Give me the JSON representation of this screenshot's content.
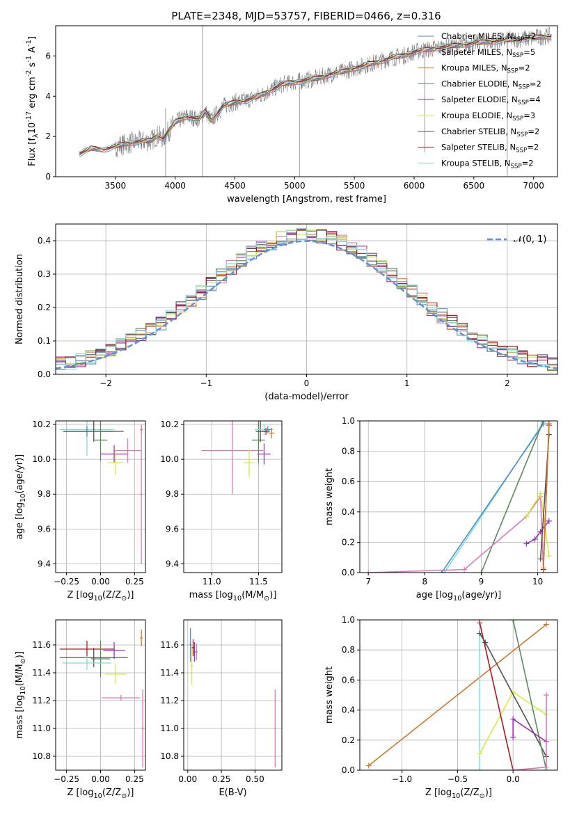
{
  "figure": {
    "title": "PLATE=2348, MJD=53757, FIBERID=0466, z=0.316"
  },
  "models": [
    {
      "key": "cm",
      "label": "Chabrier MILES, N$_{SSP}$=2",
      "label_main": "Chabrier MILES, N",
      "label_sub": "SSP",
      "label_tail": "=2",
      "color": "#4a90c8"
    },
    {
      "key": "sm",
      "label": "Salpeter MILES, N$_{SSP}$=5",
      "label_main": "Salpeter MILES, N",
      "label_sub": "SSP",
      "label_tail": "=5",
      "color": "#e078b8"
    },
    {
      "key": "km",
      "label": "Kroupa MILES, N$_{SSP}$=2",
      "label_main": "Kroupa MILES, N",
      "label_sub": "SSP",
      "label_tail": "=2",
      "color": "#d0782a"
    },
    {
      "key": "ce",
      "label": "Chabrier ELODIE, N$_{SSP}$=2",
      "label_main": "Chabrier ELODIE, N",
      "label_sub": "SSP",
      "label_tail": "=2",
      "color": "#5a8a5a"
    },
    {
      "key": "se",
      "label": "Salpeter ELODIE, N$_{SSP}$=4",
      "label_main": "Salpeter ELODIE, N",
      "label_sub": "SSP",
      "label_tail": "=4",
      "color": "#9a30b0"
    },
    {
      "key": "ke",
      "label": "Kroupa ELODIE, N$_{SSP}$=3",
      "label_main": "Kroupa ELODIE, N",
      "label_sub": "SSP",
      "label_tail": "=3",
      "color": "#d8e848"
    },
    {
      "key": "cs",
      "label": "Chabrier STELIB, N$_{SSP}$=2",
      "label_main": "Chabrier STELIB, N",
      "label_sub": "SSP",
      "label_tail": "=2",
      "color": "#505050"
    },
    {
      "key": "ss",
      "label": "Salpeter STELIB, N$_{SSP}$=2",
      "label_main": "Salpeter STELIB, N",
      "label_sub": "SSP",
      "label_tail": "=2",
      "color": "#b01818"
    },
    {
      "key": "ks",
      "label": "Kroupa STELIB, N$_{SSP}$=2",
      "label_main": "Kroupa STELIB, N",
      "label_sub": "SSP",
      "label_tail": "=2",
      "color": "#78e0e0"
    }
  ],
  "chart_data": [
    {
      "id": "spectrum",
      "type": "line",
      "title": "PLATE=2348, MJD=53757, FIBERID=0466, z=0.316",
      "xlabel": "wavelength [Angstrom, rest frame]",
      "ylabel": "Flux [f$_\\lambda$10$^{-17}$ erg cm$^{-2}$ s$^{-1}$ A$^{-1}$]",
      "xlim": [
        3000,
        7200
      ],
      "ylim": [
        0,
        7.5
      ],
      "xticks": [
        3500,
        4000,
        4500,
        5000,
        5500,
        6000,
        6500,
        7000
      ],
      "yticks": [
        0,
        2,
        4,
        6
      ],
      "grid": false,
      "legend": "top-right",
      "data_color": "#808080",
      "spectrum_x": [
        3200,
        3300,
        3400,
        3500,
        3600,
        3700,
        3800,
        3850,
        3900,
        3950,
        4000,
        4100,
        4200,
        4250,
        4300,
        4400,
        4500,
        4600,
        4700,
        4800,
        4900,
        5000,
        5100,
        5200,
        5300,
        5400,
        5500,
        5600,
        5700,
        5800,
        5900,
        6000,
        6200,
        6400,
        6600,
        6800,
        7000,
        7150
      ],
      "model_y": [
        1.15,
        1.4,
        1.35,
        1.5,
        1.65,
        1.75,
        1.8,
        2.05,
        1.9,
        2.3,
        2.7,
        3.0,
        2.85,
        3.25,
        2.8,
        3.5,
        3.7,
        3.8,
        4.0,
        4.3,
        4.6,
        4.7,
        4.8,
        4.9,
        5.1,
        5.2,
        5.4,
        5.55,
        5.7,
        5.9,
        6.0,
        6.2,
        6.4,
        6.55,
        6.7,
        6.8,
        6.9,
        7.0
      ],
      "spikes": [
        {
          "x": 4230,
          "ymin": 0,
          "ymax": 7.5
        },
        {
          "x": 3920,
          "ymin": 0,
          "ymax": 3.4
        },
        {
          "x": 5040,
          "ymin": 0,
          "ymax": 5.0
        },
        {
          "x": 6780,
          "ymin": 0,
          "ymax": 7.0
        },
        {
          "x": 6090,
          "ymin": 1.2,
          "ymax": 6.6
        }
      ]
    },
    {
      "id": "residuals",
      "type": "line",
      "xlabel": "(data-model)/error",
      "ylabel": "Normed distribution",
      "xlim": [
        -2.5,
        2.5
      ],
      "ylim": [
        0,
        0.45
      ],
      "xticks": [
        -2,
        -1,
        0,
        1,
        2
      ],
      "yticks": [
        0.0,
        0.1,
        0.2,
        0.3,
        0.4
      ],
      "grid": true,
      "legend": "top-right",
      "reference": {
        "name": "$\\mathcal{N}(0,1)$",
        "display": "𝒩(0, 1)",
        "color": "#6090d8",
        "mean": 0,
        "sd": 1
      }
    },
    {
      "id": "age-z",
      "type": "scatter",
      "xlabel": "Z [log$_{10}$(Z/Z$_\\odot$)]",
      "ylabel": "age  [log$_{10}$(age/yr)]",
      "xlim": [
        -0.33,
        0.33
      ],
      "ylim": [
        9.35,
        10.22
      ],
      "xticks": [
        -0.25,
        0.0,
        0.25
      ],
      "yticks": [
        9.4,
        9.6,
        9.8,
        10.0,
        10.2
      ],
      "grid": true,
      "points": [
        {
          "model": "ks",
          "x": -0.1,
          "y": 10.17,
          "xerr": 0.2,
          "yerr": 0.15
        },
        {
          "model": "cm",
          "x": -0.1,
          "y": 10.16,
          "xerr": 0.18,
          "yerr": 0.03
        },
        {
          "model": "cs",
          "x": -0.05,
          "y": 10.16,
          "xerr": 0.22,
          "yerr": 0.06
        },
        {
          "model": "ce",
          "x": 0.0,
          "y": 10.11,
          "xerr": 0.05,
          "yerr": 0.12
        },
        {
          "model": "se",
          "x": 0.1,
          "y": 10.03,
          "xerr": 0.1,
          "yerr": 0.05
        },
        {
          "model": "ke",
          "x": 0.11,
          "y": 9.98,
          "xerr": 0.06,
          "yerr": 0.07
        },
        {
          "model": "sm",
          "x": 0.2,
          "y": 10.05,
          "xerr": 0.1,
          "yerr": 0.07
        },
        {
          "model": "km",
          "x": 0.3,
          "y": 10.17,
          "xerr": 0.01,
          "yerr": 0.02
        },
        {
          "model": "sm",
          "x": 0.3,
          "y": 9.8,
          "xerr": 0.01,
          "yerr": 0.4
        }
      ]
    },
    {
      "id": "age-mass",
      "type": "scatter",
      "xlabel": "mass [log$_{10}$(M/M$_\\odot$)]",
      "ylabel": "",
      "xlim": [
        10.7,
        11.75
      ],
      "ylim": [
        9.35,
        10.22
      ],
      "xticks": [
        11.0,
        11.5
      ],
      "yticks": [
        9.4,
        9.6,
        9.8,
        10.0,
        10.2
      ],
      "grid": true,
      "points": [
        {
          "model": "sm",
          "x": 11.22,
          "y": 10.05,
          "xerr": 0.33,
          "yerr": 0.25
        },
        {
          "model": "ke",
          "x": 11.4,
          "y": 9.98,
          "xerr": 0.06,
          "yerr": 0.08
        },
        {
          "model": "ce",
          "x": 11.5,
          "y": 10.11,
          "xerr": 0.07,
          "yerr": 0.13
        },
        {
          "model": "se",
          "x": 11.56,
          "y": 10.03,
          "xerr": 0.07,
          "yerr": 0.06
        },
        {
          "model": "cs",
          "x": 11.52,
          "y": 10.16,
          "xerr": 0.05,
          "yerr": 0.06
        },
        {
          "model": "ks",
          "x": 11.56,
          "y": 10.17,
          "xerr": 0.1,
          "yerr": 0.03
        },
        {
          "model": "ss",
          "x": 11.58,
          "y": 10.16,
          "xerr": 0.04,
          "yerr": 0.02
        },
        {
          "model": "km",
          "x": 11.64,
          "y": 10.15,
          "xerr": 0.03,
          "yerr": 0.03
        },
        {
          "model": "cm",
          "x": 11.6,
          "y": 10.17,
          "xerr": 0.04,
          "yerr": 0.02
        }
      ]
    },
    {
      "id": "weight-age",
      "type": "line",
      "xlabel": "age  [log$_{10}$(age/yr)]",
      "ylabel": "mass weight",
      "xlim": [
        6.85,
        10.35
      ],
      "ylim": [
        0,
        1.0
      ],
      "xticks": [
        7,
        8,
        9,
        10
      ],
      "yticks": [
        0.0,
        0.2,
        0.4,
        0.6,
        0.8,
        1.0
      ],
      "grid": true,
      "series": [
        {
          "model": "ks",
          "x": [
            8.35,
            10.1
          ],
          "y": [
            0.0,
            0.99
          ]
        },
        {
          "model": "cm",
          "x": [
            8.3,
            10.1
          ],
          "y": [
            0.0,
            0.98
          ]
        },
        {
          "model": "ce",
          "x": [
            9.0,
            10.1
          ],
          "y": [
            0.0,
            1.0
          ]
        },
        {
          "model": "sm",
          "x": [
            7.0,
            8.7,
            9.8,
            10.05,
            10.1
          ],
          "y": [
            0.0,
            0.02,
            0.37,
            0.5,
            0.03
          ]
        },
        {
          "model": "ke",
          "x": [
            9.8,
            10.05,
            10.2
          ],
          "y": [
            0.37,
            0.52,
            0.11
          ]
        },
        {
          "model": "se",
          "x": [
            9.8,
            9.95,
            10.05,
            10.2
          ],
          "y": [
            0.19,
            0.22,
            0.27,
            0.34
          ]
        },
        {
          "model": "cs",
          "x": [
            10.05,
            10.2
          ],
          "y": [
            0.09,
            0.91
          ]
        },
        {
          "model": "ss",
          "x": [
            10.1,
            10.2
          ],
          "y": [
            0.02,
            0.98
          ]
        },
        {
          "model": "km",
          "x": [
            10.1,
            10.2
          ],
          "y": [
            0.03,
            0.97
          ]
        }
      ]
    },
    {
      "id": "mass-z",
      "type": "scatter",
      "xlabel": "Z [log$_{10}$(Z/Z$_\\odot$)]",
      "ylabel": "mass [log$_{10}$(M/M$_\\odot$)]",
      "xlim": [
        -0.33,
        0.33
      ],
      "ylim": [
        10.7,
        11.78
      ],
      "xticks": [
        -0.25,
        0.0,
        0.25
      ],
      "yticks": [
        10.8,
        11.0,
        11.2,
        11.4,
        11.6
      ],
      "grid": true,
      "points": [
        {
          "model": "ss",
          "x": -0.1,
          "y": 11.57,
          "xerr": 0.2,
          "yerr": 0.06
        },
        {
          "model": "se",
          "x": 0.1,
          "y": 11.56,
          "xerr": 0.08,
          "yerr": 0.06
        },
        {
          "model": "ce",
          "x": 0.0,
          "y": 11.5,
          "xerr": 0.07,
          "yerr": 0.13
        },
        {
          "model": "cs",
          "x": -0.05,
          "y": 11.51,
          "xerr": 0.25,
          "yerr": 0.07
        },
        {
          "model": "ks",
          "x": -0.1,
          "y": 11.47,
          "xerr": 0.18,
          "yerr": 0.05
        },
        {
          "model": "ke",
          "x": 0.11,
          "y": 11.39,
          "xerr": 0.08,
          "yerr": 0.07
        },
        {
          "model": "sm",
          "x": 0.15,
          "y": 11.22,
          "xerr": 0.14,
          "yerr": 0.02
        },
        {
          "model": "sm",
          "x": 0.31,
          "y": 11.0,
          "xerr": 0.01,
          "yerr": 0.28
        },
        {
          "model": "km",
          "x": 0.3,
          "y": 11.65,
          "xerr": 0.01,
          "yerr": 0.06
        }
      ]
    },
    {
      "id": "mass-ebv",
      "type": "scatter",
      "xlabel": "E(B-V)",
      "ylabel": "",
      "xlim": [
        -0.03,
        0.7
      ],
      "ylim": [
        10.7,
        11.78
      ],
      "xticks": [
        0.0,
        0.25,
        0.5
      ],
      "yticks": [
        10.8,
        11.0,
        11.2,
        11.4,
        11.6
      ],
      "grid": true,
      "points": [
        {
          "model": "cm",
          "x": 0.02,
          "y": 11.6,
          "xerr": 0.01,
          "yerr": 0.12
        },
        {
          "model": "ke",
          "x": 0.03,
          "y": 11.45,
          "xerr": 0.01,
          "yerr": 0.14
        },
        {
          "model": "ss",
          "x": 0.04,
          "y": 11.58,
          "xerr": 0.01,
          "yerr": 0.06
        },
        {
          "model": "se",
          "x": 0.05,
          "y": 11.55,
          "xerr": 0.01,
          "yerr": 0.07
        },
        {
          "model": "sm",
          "x": 0.065,
          "y": 11.55,
          "xerr": 0.01,
          "yerr": 0.06
        },
        {
          "model": "sm",
          "x": 0.65,
          "y": 11.0,
          "xerr": 0.005,
          "yerr": 0.28
        }
      ]
    },
    {
      "id": "weight-z",
      "type": "line",
      "xlabel": "Z [log$_{10}$(Z/Z$_\\odot$)]",
      "ylabel": "mass weight",
      "xlim": [
        -1.38,
        0.4
      ],
      "ylim": [
        0,
        1.0
      ],
      "xticks": [
        -1.0,
        -0.5,
        0.0
      ],
      "yticks": [
        0.0,
        0.2,
        0.4,
        0.6,
        0.8,
        1.0
      ],
      "grid": true,
      "series": [
        {
          "model": "km",
          "x": [
            -1.3,
            0.3
          ],
          "y": [
            0.03,
            0.97
          ]
        },
        {
          "model": "ks",
          "x": [
            -0.3,
            -0.3
          ],
          "y": [
            0.0,
            1.0
          ]
        },
        {
          "model": "ke",
          "x": [
            -0.3,
            0.0,
            0.3
          ],
          "y": [
            0.11,
            0.52,
            0.37
          ]
        },
        {
          "model": "ss",
          "x": [
            -0.3,
            0.0
          ],
          "y": [
            0.98,
            0.0
          ]
        },
        {
          "model": "cs",
          "x": [
            -0.3,
            -0.25,
            0.3
          ],
          "y": [
            0.91,
            0.85,
            0.09
          ]
        },
        {
          "model": "ce",
          "x": [
            0.0,
            0.3
          ],
          "y": [
            1.0,
            0.0
          ]
        },
        {
          "model": "se",
          "x": [
            0.0,
            0.0,
            0.3
          ],
          "y": [
            0.22,
            0.34,
            0.19
          ]
        },
        {
          "model": "sm",
          "x": [
            0.0,
            0.3,
            0.3
          ],
          "y": [
            0.0,
            0.02,
            0.5
          ]
        }
      ]
    }
  ]
}
